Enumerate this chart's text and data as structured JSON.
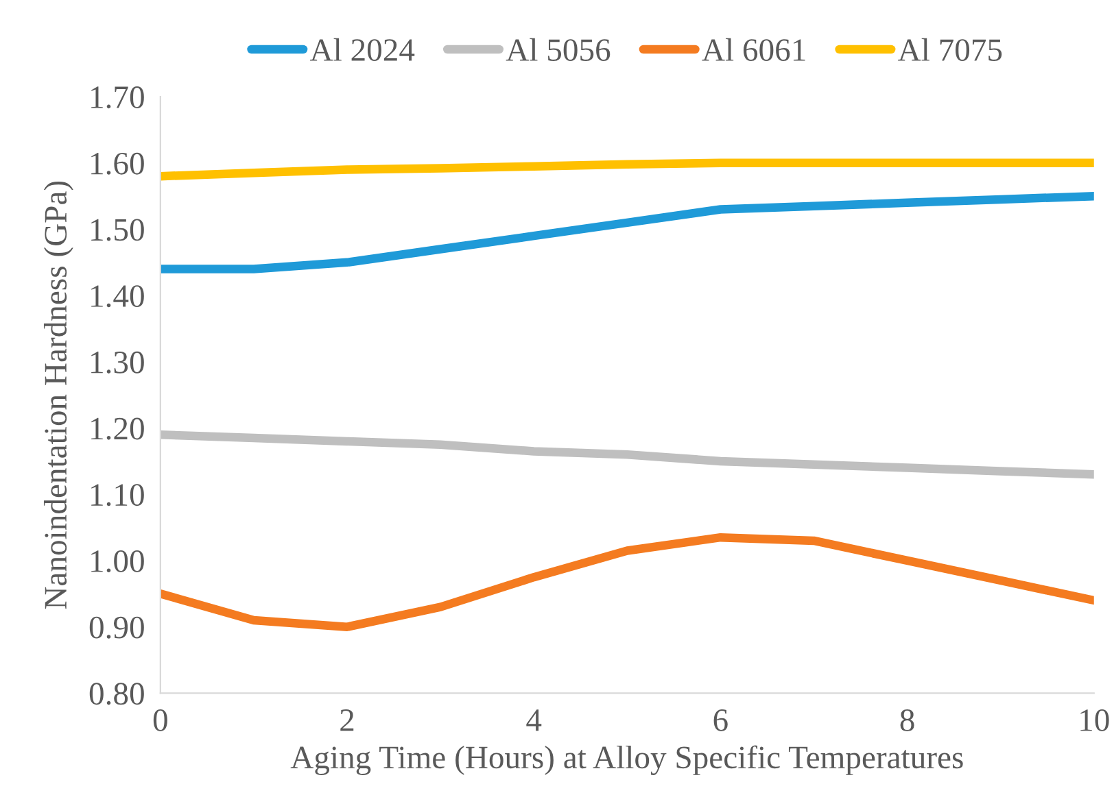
{
  "chart_data": {
    "type": "line",
    "xlabel": "Aging Time (Hours) at Alloy Specific Temperatures",
    "ylabel": "Nanoindentation Hardness (GPa)",
    "x": [
      0,
      1,
      2,
      3,
      4,
      5,
      6,
      7,
      8,
      9,
      10
    ],
    "series": [
      {
        "name": "Al 2024",
        "color": "#1f9ad8",
        "values": [
          1.44,
          1.44,
          1.45,
          1.47,
          1.49,
          1.51,
          1.53,
          1.535,
          1.54,
          1.545,
          1.55
        ]
      },
      {
        "name": "Al 5056",
        "color": "#bfbfbf",
        "values": [
          1.19,
          1.185,
          1.18,
          1.175,
          1.165,
          1.16,
          1.15,
          1.145,
          1.14,
          1.135,
          1.13
        ]
      },
      {
        "name": "Al 6061",
        "color": "#f47b20",
        "values": [
          0.95,
          0.91,
          0.9,
          0.93,
          0.975,
          1.015,
          1.035,
          1.03,
          1.0,
          0.97,
          0.94
        ]
      },
      {
        "name": "Al 7075",
        "color": "#ffc000",
        "values": [
          1.58,
          1.585,
          1.59,
          1.592,
          1.595,
          1.598,
          1.6,
          1.6,
          1.6,
          1.6,
          1.6
        ]
      }
    ],
    "xlim": [
      0,
      10
    ],
    "xticks": [
      0,
      2,
      4,
      6,
      8,
      10
    ],
    "ylim": [
      0.8,
      1.7
    ],
    "yticks": [
      {
        "value": 0.8,
        "label": "0.80"
      },
      {
        "value": 0.9,
        "label": "0.90"
      },
      {
        "value": 1.0,
        "label": "1.00"
      },
      {
        "value": 1.1,
        "label": "1.10"
      },
      {
        "value": 1.2,
        "label": "1.20"
      },
      {
        "value": 1.3,
        "label": "1.30"
      },
      {
        "value": 1.4,
        "label": "1.40"
      },
      {
        "value": 1.5,
        "label": "1.50"
      },
      {
        "value": 1.6,
        "label": "1.60"
      },
      {
        "value": 1.7,
        "label": "1.70"
      }
    ],
    "grid": false,
    "legend": "top",
    "marker": "none",
    "line_style": "solid"
  }
}
